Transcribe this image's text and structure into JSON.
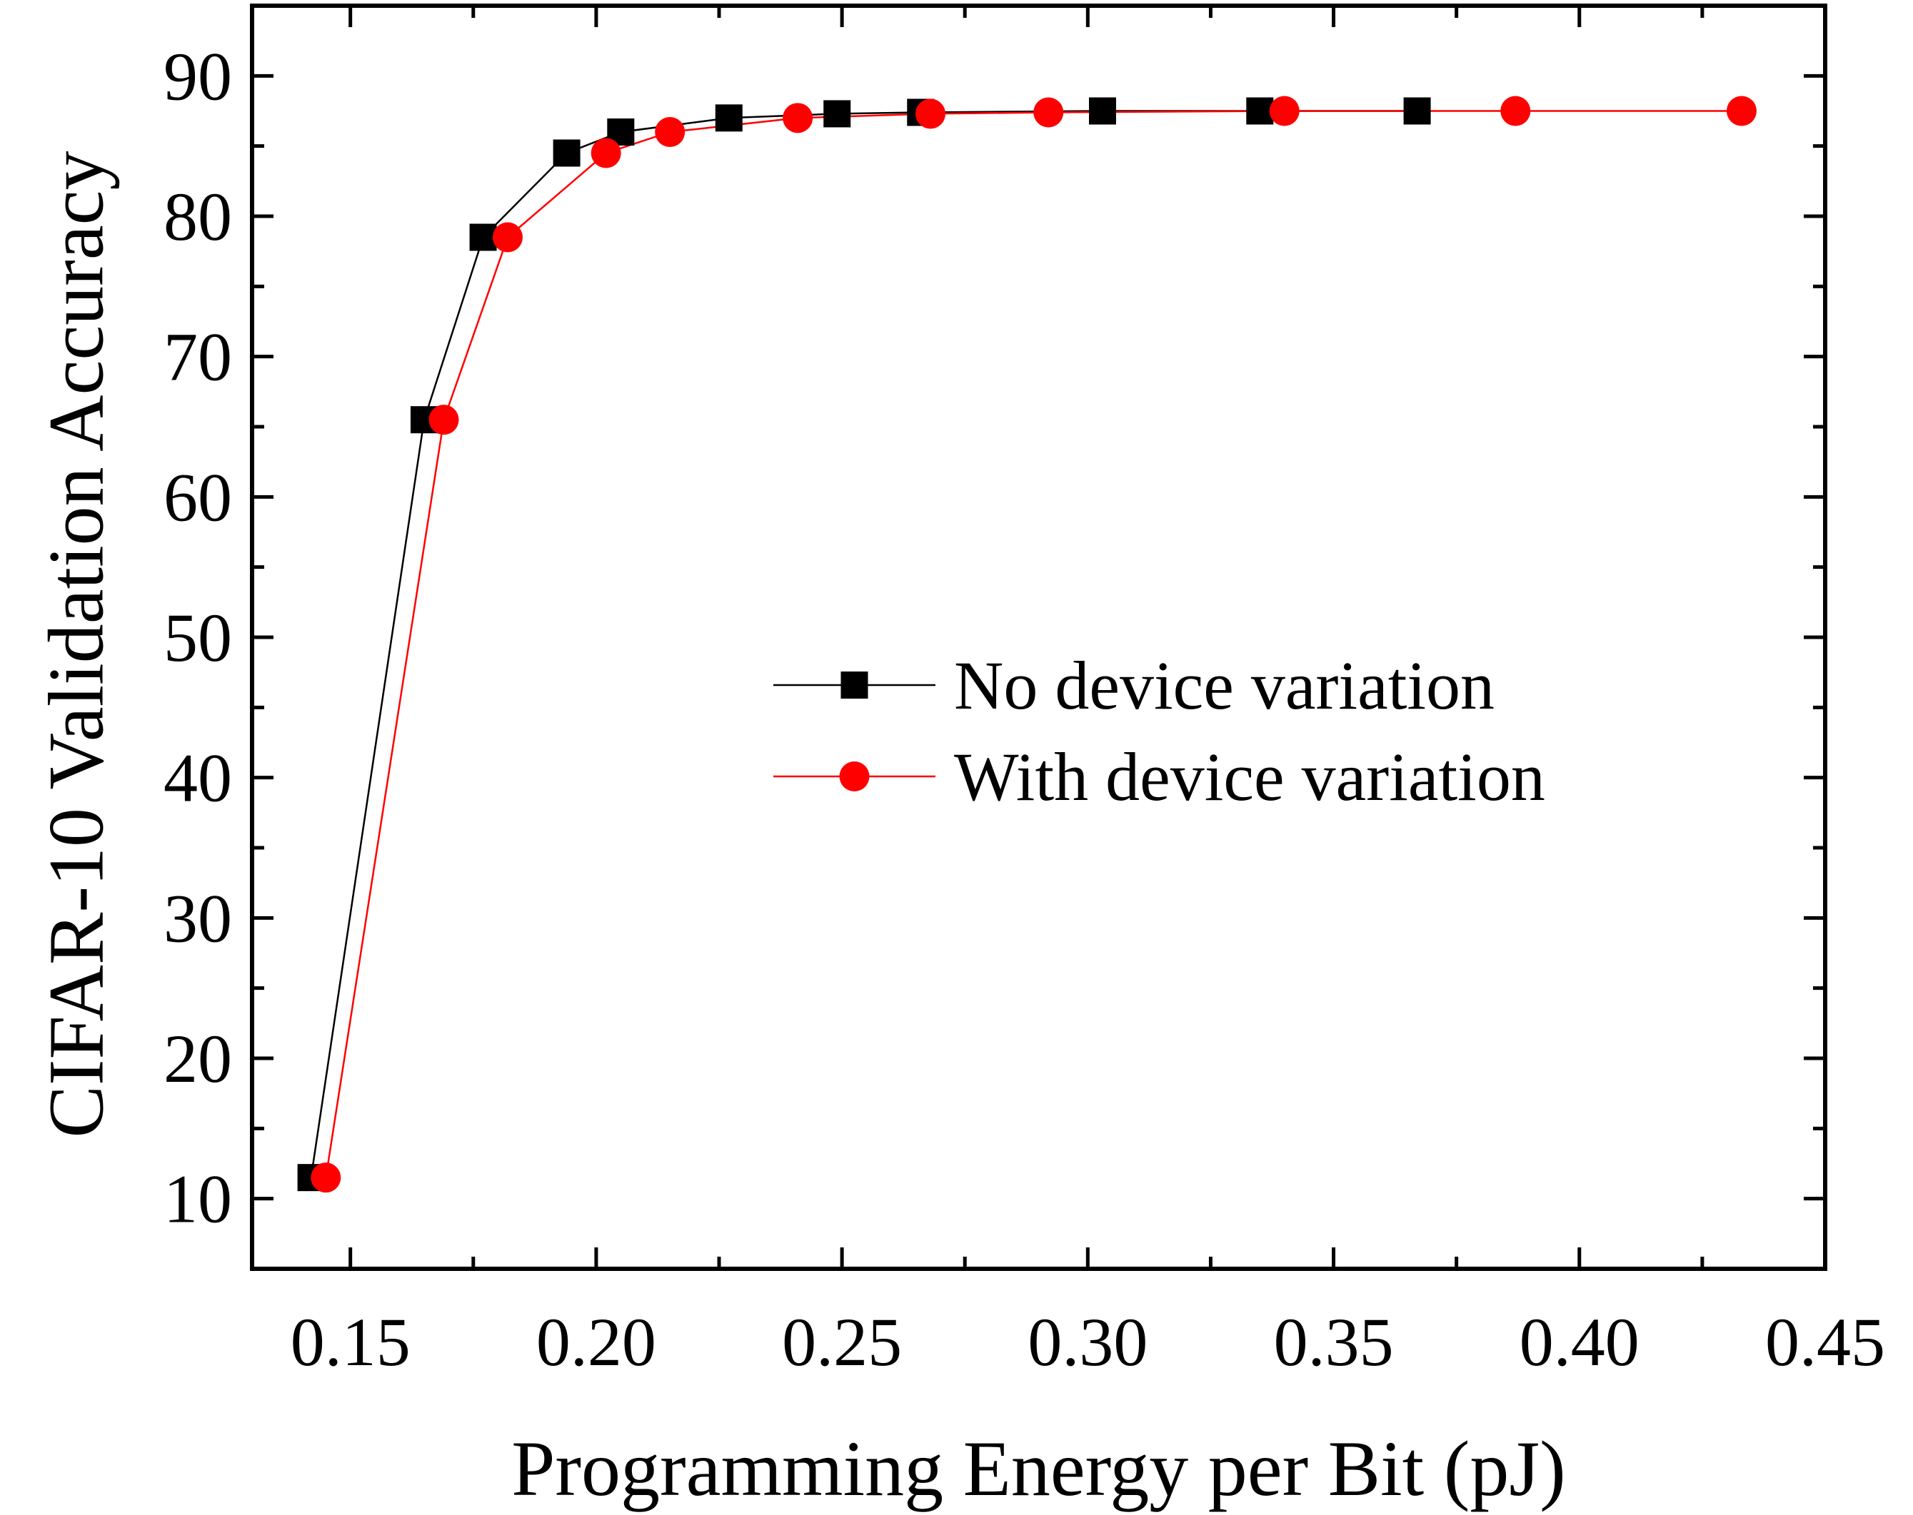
{
  "chart_data": {
    "type": "line",
    "xlabel": "Programming Energy per Bit (pJ)",
    "ylabel": "CIFAR-10 Validation Accuracy",
    "xlim": [
      0.13,
      0.45
    ],
    "ylim": [
      5,
      95
    ],
    "xticks": [
      0.15,
      0.2,
      0.25,
      0.3,
      0.35,
      0.4,
      0.45
    ],
    "xtick_labels": [
      "0.15",
      "0.20",
      "0.25",
      "0.30",
      "0.35",
      "0.40",
      "0.45"
    ],
    "yticks": [
      10,
      20,
      30,
      40,
      50,
      60,
      70,
      80,
      90
    ],
    "ytick_labels": [
      "10",
      "20",
      "30",
      "40",
      "50",
      "60",
      "70",
      "80",
      "90"
    ],
    "grid": false,
    "legend_position": "center-right",
    "series": [
      {
        "name": "No device variation",
        "color": "#000000",
        "marker": "square",
        "x": [
          0.142,
          0.165,
          0.177,
          0.194,
          0.205,
          0.227,
          0.249,
          0.266,
          0.303,
          0.335,
          0.367
        ],
        "y": [
          11.5,
          65.5,
          78.5,
          84.5,
          86.0,
          87.0,
          87.3,
          87.4,
          87.5,
          87.5,
          87.5
        ]
      },
      {
        "name": "With device variation",
        "color": "#ff0000",
        "marker": "circle",
        "x": [
          0.145,
          0.169,
          0.182,
          0.202,
          0.215,
          0.241,
          0.268,
          0.292,
          0.34,
          0.387,
          0.433
        ],
        "y": [
          11.5,
          65.5,
          78.5,
          84.5,
          86.0,
          87.0,
          87.3,
          87.4,
          87.5,
          87.5,
          87.5
        ]
      }
    ]
  }
}
